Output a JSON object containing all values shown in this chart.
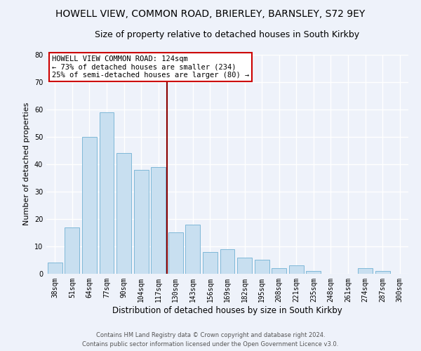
{
  "title": "HOWELL VIEW, COMMON ROAD, BRIERLEY, BARNSLEY, S72 9EY",
  "subtitle": "Size of property relative to detached houses in South Kirkby",
  "xlabel": "Distribution of detached houses by size in South Kirkby",
  "ylabel": "Number of detached properties",
  "categories": [
    "38sqm",
    "51sqm",
    "64sqm",
    "77sqm",
    "90sqm",
    "104sqm",
    "117sqm",
    "130sqm",
    "143sqm",
    "156sqm",
    "169sqm",
    "182sqm",
    "195sqm",
    "208sqm",
    "221sqm",
    "235sqm",
    "248sqm",
    "261sqm",
    "274sqm",
    "287sqm",
    "300sqm"
  ],
  "values": [
    4,
    17,
    50,
    59,
    44,
    38,
    39,
    15,
    18,
    8,
    9,
    6,
    5,
    2,
    3,
    1,
    0,
    0,
    2,
    1,
    0
  ],
  "bar_color": "#c8dff0",
  "bar_edge_color": "#7fb8d8",
  "highlight_index": 6,
  "highlight_line_color": "#8b0000",
  "ylim": [
    0,
    80
  ],
  "yticks": [
    0,
    10,
    20,
    30,
    40,
    50,
    60,
    70,
    80
  ],
  "annotation_title": "HOWELL VIEW COMMON ROAD: 124sqm",
  "annotation_line1": "← 73% of detached houses are smaller (234)",
  "annotation_line2": "25% of semi-detached houses are larger (80) →",
  "annotation_box_color": "#ffffff",
  "annotation_border_color": "#cc0000",
  "footer_line1": "Contains HM Land Registry data © Crown copyright and database right 2024.",
  "footer_line2": "Contains public sector information licensed under the Open Government Licence v3.0.",
  "background_color": "#eef2fa",
  "grid_color": "#ffffff",
  "title_fontsize": 10,
  "subtitle_fontsize": 9,
  "xlabel_fontsize": 8.5,
  "ylabel_fontsize": 8,
  "tick_fontsize": 7,
  "footer_fontsize": 6,
  "annotation_fontsize": 7.5
}
